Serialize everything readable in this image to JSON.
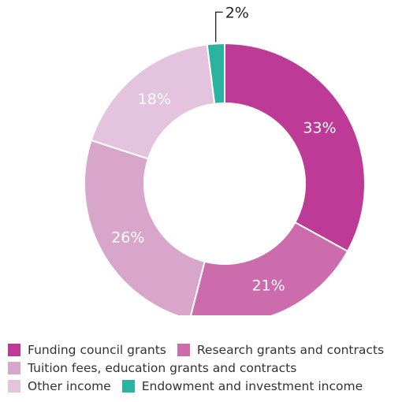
{
  "chart_data": {
    "type": "pie",
    "donut": true,
    "categories": [
      "Funding council grants",
      "Research grants and contracts",
      "Tuition fees, education grants and contracts",
      "Other income",
      "Endowment and investment income"
    ],
    "values": [
      33,
      21,
      26,
      18,
      2
    ],
    "labels": [
      "33%",
      "21%",
      "26%",
      "18%",
      "2%"
    ],
    "colors": [
      "#be3a97",
      "#cc6cad",
      "#d9a6cb",
      "#e4c3df",
      "#2ab3a0"
    ],
    "label_colors": [
      "#ffffff",
      "#ffffff",
      "#ffffff",
      "#ffffff",
      "#222222"
    ],
    "legend_position": "bottom"
  }
}
